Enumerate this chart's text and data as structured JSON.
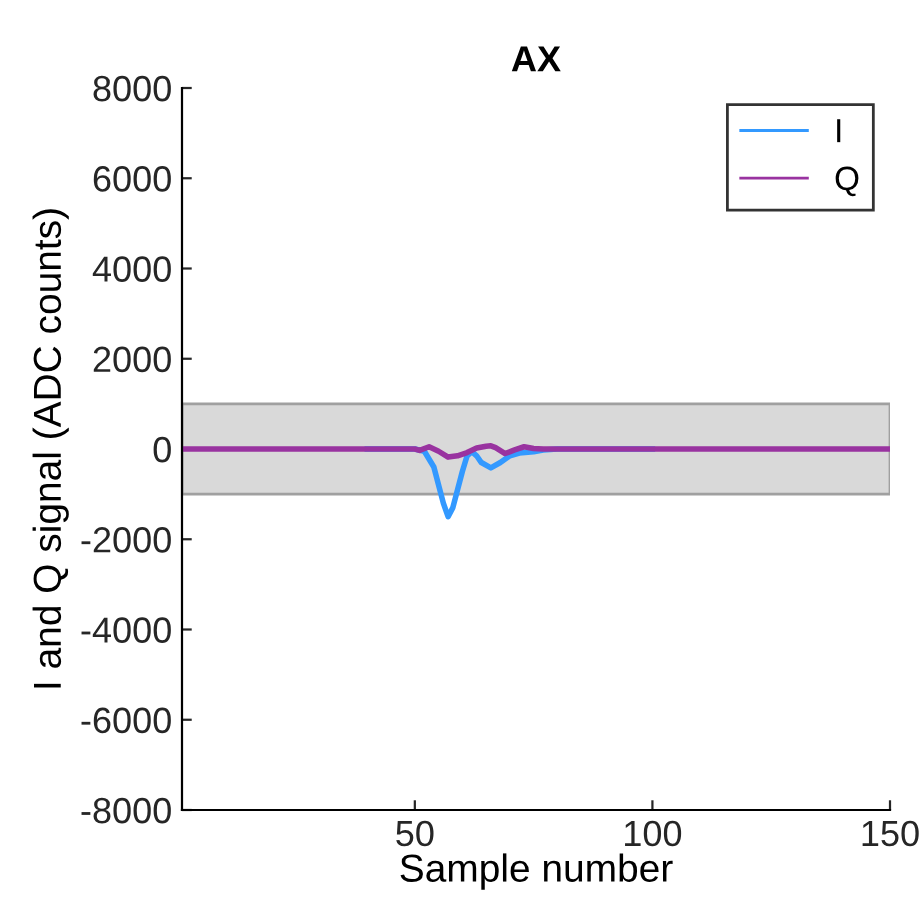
{
  "chart_data": {
    "type": "line",
    "title": "AX",
    "xlabel": "Sample number",
    "ylabel": "I and Q signal (ADC counts)",
    "xlim": [
      1,
      150
    ],
    "xticks": [
      50,
      100,
      150
    ],
    "ylim": [
      -8000,
      8000
    ],
    "yticks": [
      -8000,
      -6000,
      -4000,
      -2000,
      0,
      2000,
      4000,
      6000,
      8000
    ],
    "grid": false,
    "legend": "top right",
    "marker": "none",
    "line_style": "solid",
    "bands": [
      {
        "axis": "y",
        "from": -1000,
        "to": 1000,
        "color": "#d9d9d9"
      }
    ],
    "series": [
      {
        "name": "I",
        "color": "#3399ff",
        "x": [
          40,
          50,
          52,
          54,
          56,
          57,
          58,
          60,
          61,
          62,
          63,
          64,
          66,
          68,
          70,
          72,
          75,
          77,
          80,
          100
        ],
        "values": [
          0,
          0,
          -50,
          -400,
          -1200,
          -1500,
          -1300,
          -500,
          -150,
          -60,
          -150,
          -300,
          -420,
          -300,
          -150,
          -90,
          -60,
          -20,
          0,
          0
        ]
      },
      {
        "name": "Q",
        "color": "#9933a0",
        "x": [
          1,
          20,
          40,
          50,
          51,
          53,
          55,
          57,
          59,
          61,
          63,
          65,
          66,
          67,
          69,
          71,
          73,
          75,
          77,
          80,
          100,
          120,
          150
        ],
        "values": [
          0,
          0,
          0,
          0,
          -30,
          50,
          -50,
          -180,
          -150,
          -80,
          20,
          60,
          70,
          30,
          -100,
          -20,
          50,
          10,
          0,
          0,
          0,
          0,
          0
        ]
      }
    ]
  }
}
